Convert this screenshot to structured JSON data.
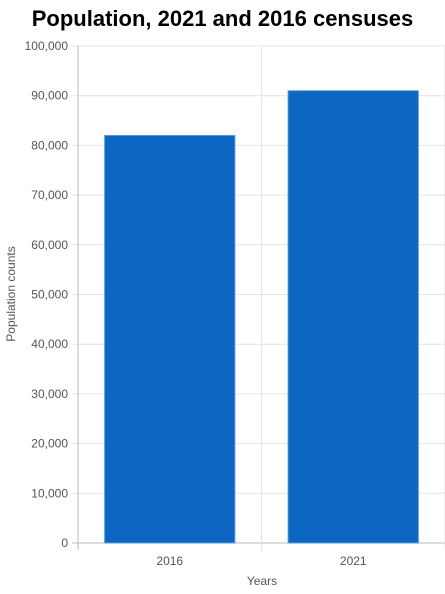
{
  "chart_data": {
    "type": "bar",
    "title": "Population, 2021 and 2016 censuses",
    "categories": [
      "2016",
      "2021"
    ],
    "values": [
      82000,
      91000
    ],
    "xlabel": "Years",
    "ylabel": "Population counts",
    "ylim": [
      0,
      100000
    ],
    "yticks": [
      "0",
      "10,000",
      "20,000",
      "30,000",
      "40,000",
      "50,000",
      "60,000",
      "70,000",
      "80,000",
      "90,000",
      "100,000"
    ],
    "grid": true,
    "bar_color": "#0c66c2",
    "bar_border_color": "#5b9bd5"
  }
}
